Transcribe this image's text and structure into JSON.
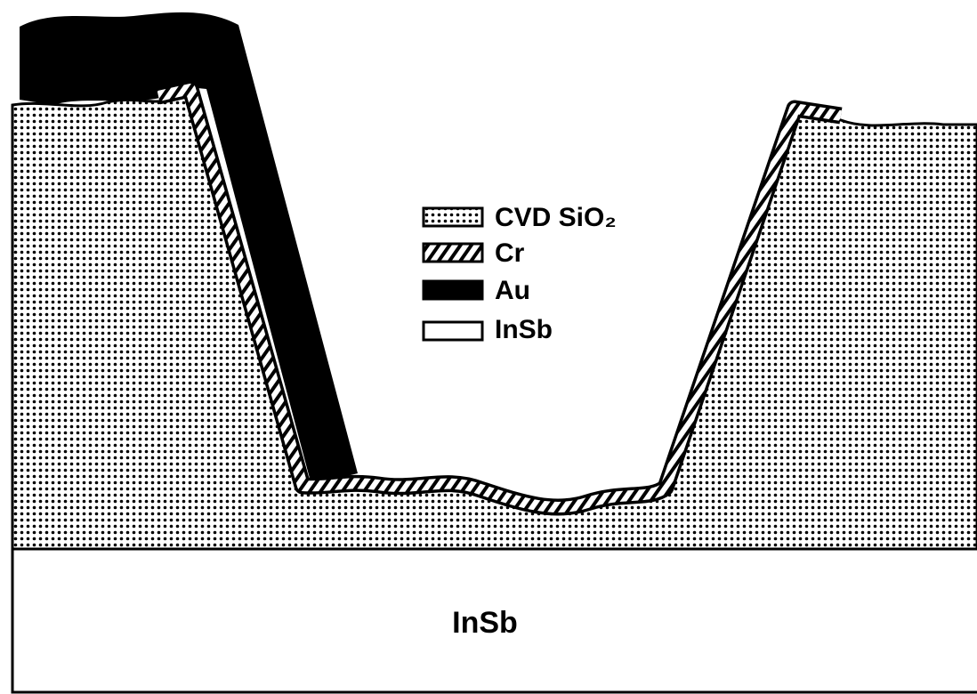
{
  "legend": {
    "items": [
      {
        "label": "CVD SiO₂"
      },
      {
        "label": "Cr"
      },
      {
        "label": "Au"
      },
      {
        "label": "InSb"
      }
    ]
  },
  "substrate": {
    "label": "InSb"
  }
}
